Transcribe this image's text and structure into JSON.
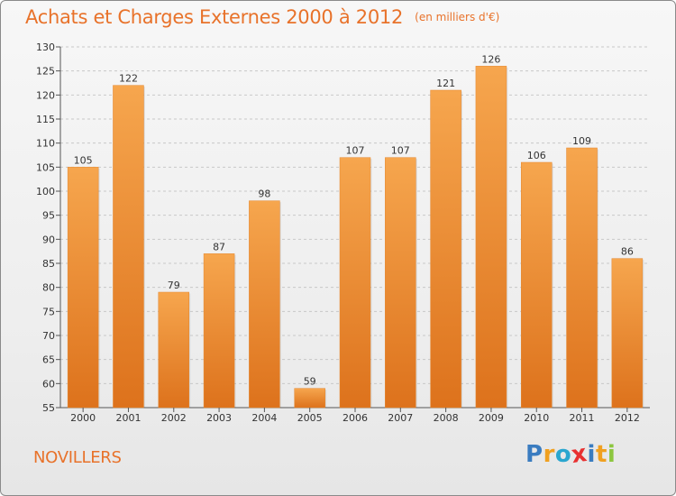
{
  "chart_data": {
    "type": "bar",
    "title": "Achats et Charges Externes 2000 à 2012",
    "unit": "(en milliers d'€)",
    "categories": [
      "2000",
      "2001",
      "2002",
      "2003",
      "2004",
      "2005",
      "2006",
      "2007",
      "2008",
      "2009",
      "2010",
      "2011",
      "2012"
    ],
    "values": [
      105,
      122,
      79,
      87,
      98,
      59,
      107,
      107,
      121,
      126,
      106,
      109,
      86
    ],
    "ylim": [
      55,
      130
    ],
    "yticks": [
      55,
      60,
      65,
      70,
      75,
      80,
      85,
      90,
      95,
      100,
      105,
      110,
      115,
      120,
      125,
      130
    ],
    "grid": true,
    "bar_color": "#f0933f"
  },
  "commune": "NOVILLERS",
  "logo": {
    "letters": [
      "P",
      "r",
      "o",
      "x",
      "i",
      "t",
      "i"
    ],
    "colors": [
      "#3a7cc0",
      "#f0a020",
      "#2aa6cf",
      "#e83030",
      "#3a7cc0",
      "#f0a020",
      "#8cc63f"
    ]
  }
}
